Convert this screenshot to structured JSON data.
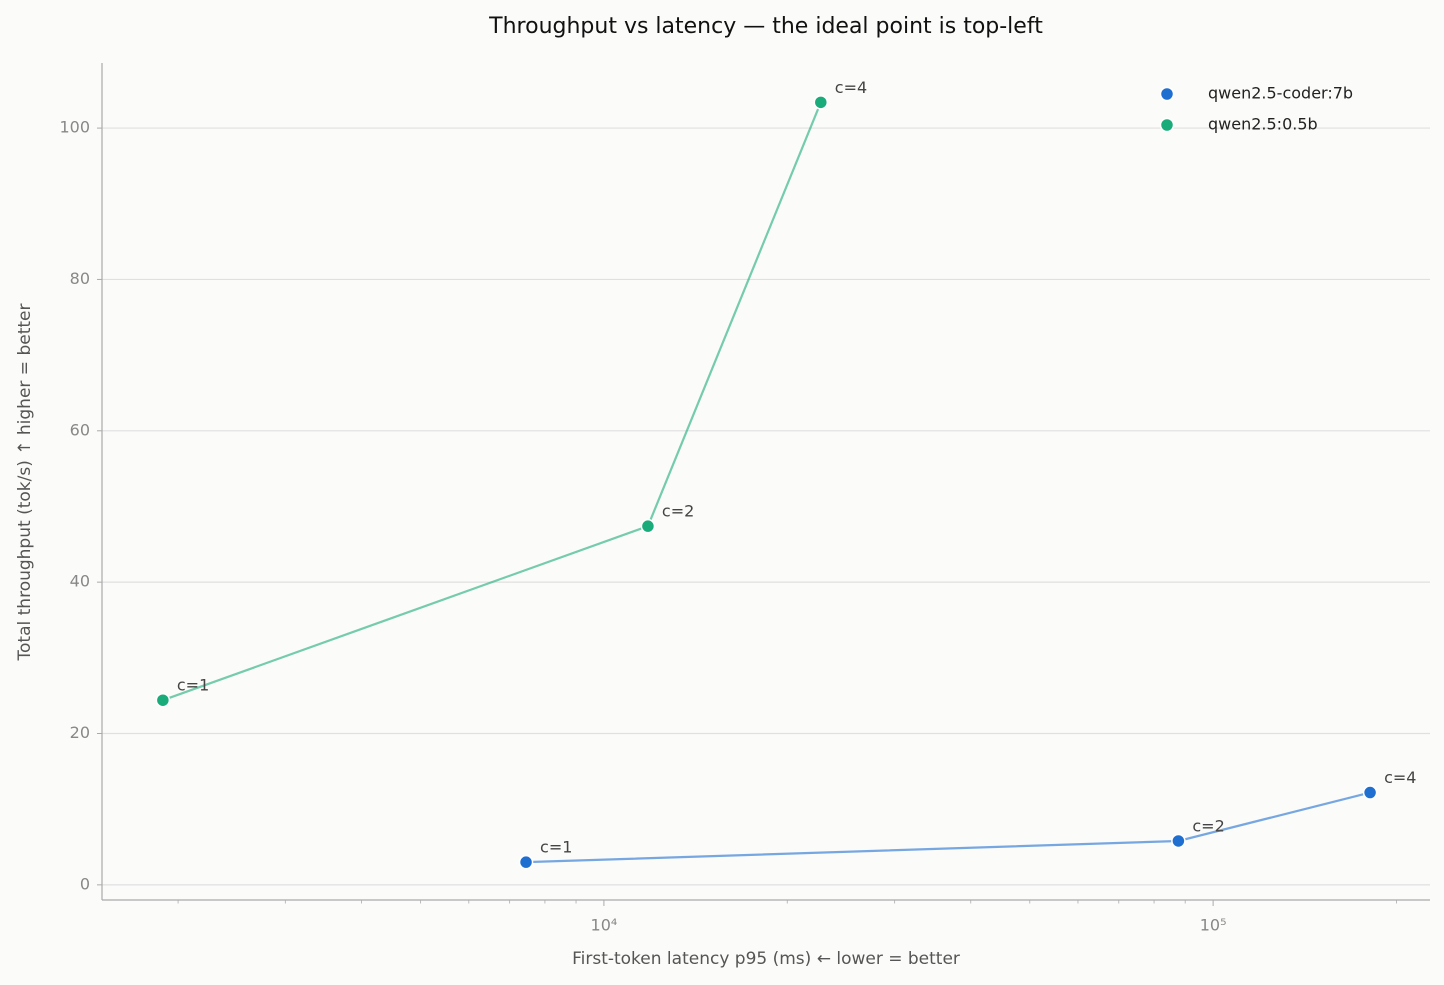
{
  "chart_data": {
    "type": "scatter",
    "title": "Throughput vs latency — the ideal point is top-left",
    "xlabel": "First-token latency p95 (ms)  ← lower = better",
    "ylabel": "Total throughput (tok/s)  ↑ higher = better",
    "xscale": "log",
    "xlim": [
      1500,
      227000
    ],
    "ylim": [
      -2,
      108.6
    ],
    "xticks": [
      {
        "value": 10000,
        "label": "10⁴"
      },
      {
        "value": 100000,
        "label": "10⁵"
      }
    ],
    "xminorticks": [
      2000,
      3000,
      4000,
      5000,
      6000,
      7000,
      8000,
      9000,
      20000,
      30000,
      40000,
      50000,
      60000,
      70000,
      80000,
      90000,
      200000
    ],
    "yticks": [
      0,
      20,
      40,
      60,
      80,
      100
    ],
    "grid": true,
    "legend": "upper right",
    "series": [
      {
        "name": "qwen2.5-coder:7b",
        "color": "#1f6fd1",
        "x": [
          7450,
          87700,
          181000
        ],
        "values": [
          3.0,
          5.8,
          12.2
        ],
        "labels": [
          "c=1",
          "c=2",
          "c=4"
        ]
      },
      {
        "name": "qwen2.5:0.5b",
        "color": "#1aab7a",
        "x": [
          1888,
          11810,
          22700
        ],
        "values": [
          24.4,
          47.4,
          103.4
        ],
        "labels": [
          "c=1",
          "c=2",
          "c=4"
        ]
      }
    ]
  }
}
